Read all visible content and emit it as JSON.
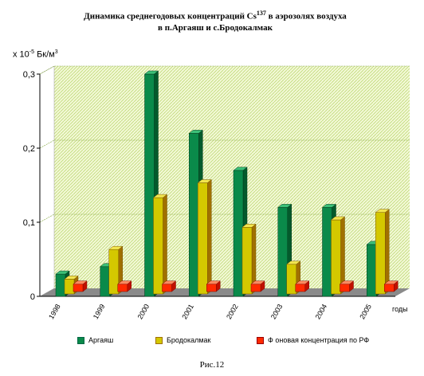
{
  "chart_data": {
    "type": "bar",
    "title_line1": "Динамика среднегодовых концентраций Cs",
    "title_sup": "137",
    "title_line1_end": " в аэрозолях воздуха",
    "title_line2": "в п.Аргаяш и с.Бродокалмак",
    "ylabel_prefix": "х 10",
    "ylabel_exp": "-5",
    "ylabel_unit": " Бк/м",
    "ylabel_unit_exp": "3",
    "xlabel": "годы",
    "categories": [
      "1998",
      "1999",
      "2000",
      "2001",
      "2002",
      "2003",
      "2004",
      "2005"
    ],
    "series": [
      {
        "name": "Аргаяш",
        "values": [
          0.03,
          0.04,
          0.3,
          0.22,
          0.17,
          0.12,
          0.12,
          0.07
        ]
      },
      {
        "name": "Бродокалмак",
        "values": [
          0.02,
          0.06,
          0.13,
          0.15,
          0.09,
          0.04,
          0.1,
          0.11
        ]
      },
      {
        "name": "Ф оновая концентрация  по РФ",
        "values": [
          0.01,
          0.01,
          0.01,
          0.01,
          0.01,
          0.01,
          0.01,
          0.01
        ]
      }
    ],
    "ylim": [
      0,
      0.3
    ],
    "yticks": [
      "0",
      "0,1",
      "0,2",
      "0,3"
    ],
    "grid": true,
    "legend_position": "bottom"
  },
  "colors": {
    "argayash": "#0a8a4a",
    "brodokalmak": "#d4c800",
    "background_rf": "#ff2a00",
    "wall": "#eef6c8",
    "floor": "#8a8a8a"
  },
  "caption": "Рис.12"
}
